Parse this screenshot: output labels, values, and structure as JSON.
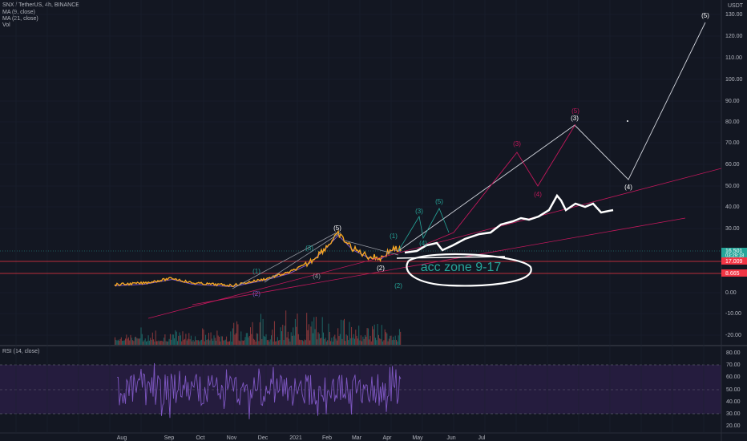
{
  "header": {
    "symbol": "SNX / TetherUS, 4h, BINANCE",
    "indicators": [
      "MA (9, close)",
      "MA (21, close)",
      "Vol"
    ],
    "currency": "USDT"
  },
  "price_axis": {
    "labels": [
      "130.00",
      "120.00",
      "110.00",
      "100.00",
      "90.00",
      "80.00",
      "70.00",
      "60.00",
      "50.00",
      "40.00",
      "30.00",
      "0.00",
      "-10.00",
      "-20.00"
    ],
    "tags": [
      {
        "text": "16.501",
        "sub": "03:29:18"
      },
      {
        "text": "17.009"
      },
      {
        "text": "8.665"
      }
    ]
  },
  "rsi": {
    "title": "RSI (14, close)",
    "labels": [
      "80.00",
      "70.00",
      "60.00",
      "50.00",
      "40.00",
      "30.00",
      "20.00"
    ]
  },
  "time_axis": {
    "labels": [
      "Aug",
      "Sep",
      "Oct",
      "Nov",
      "Dec",
      "2021",
      "Feb",
      "Mar",
      "Apr",
      "May",
      "Jun",
      "Jul"
    ]
  },
  "annotations": {
    "waves": [
      "(1)",
      "(2)",
      "(3)",
      "(4)",
      "(5)",
      "(2)",
      "(1)",
      "(2)",
      "(3)",
      "(5)",
      "(4)",
      "(3)",
      "(4)",
      "(5)",
      "(3)",
      "(4)",
      "(5)"
    ],
    "zone": "acc zone 9-17"
  }
}
